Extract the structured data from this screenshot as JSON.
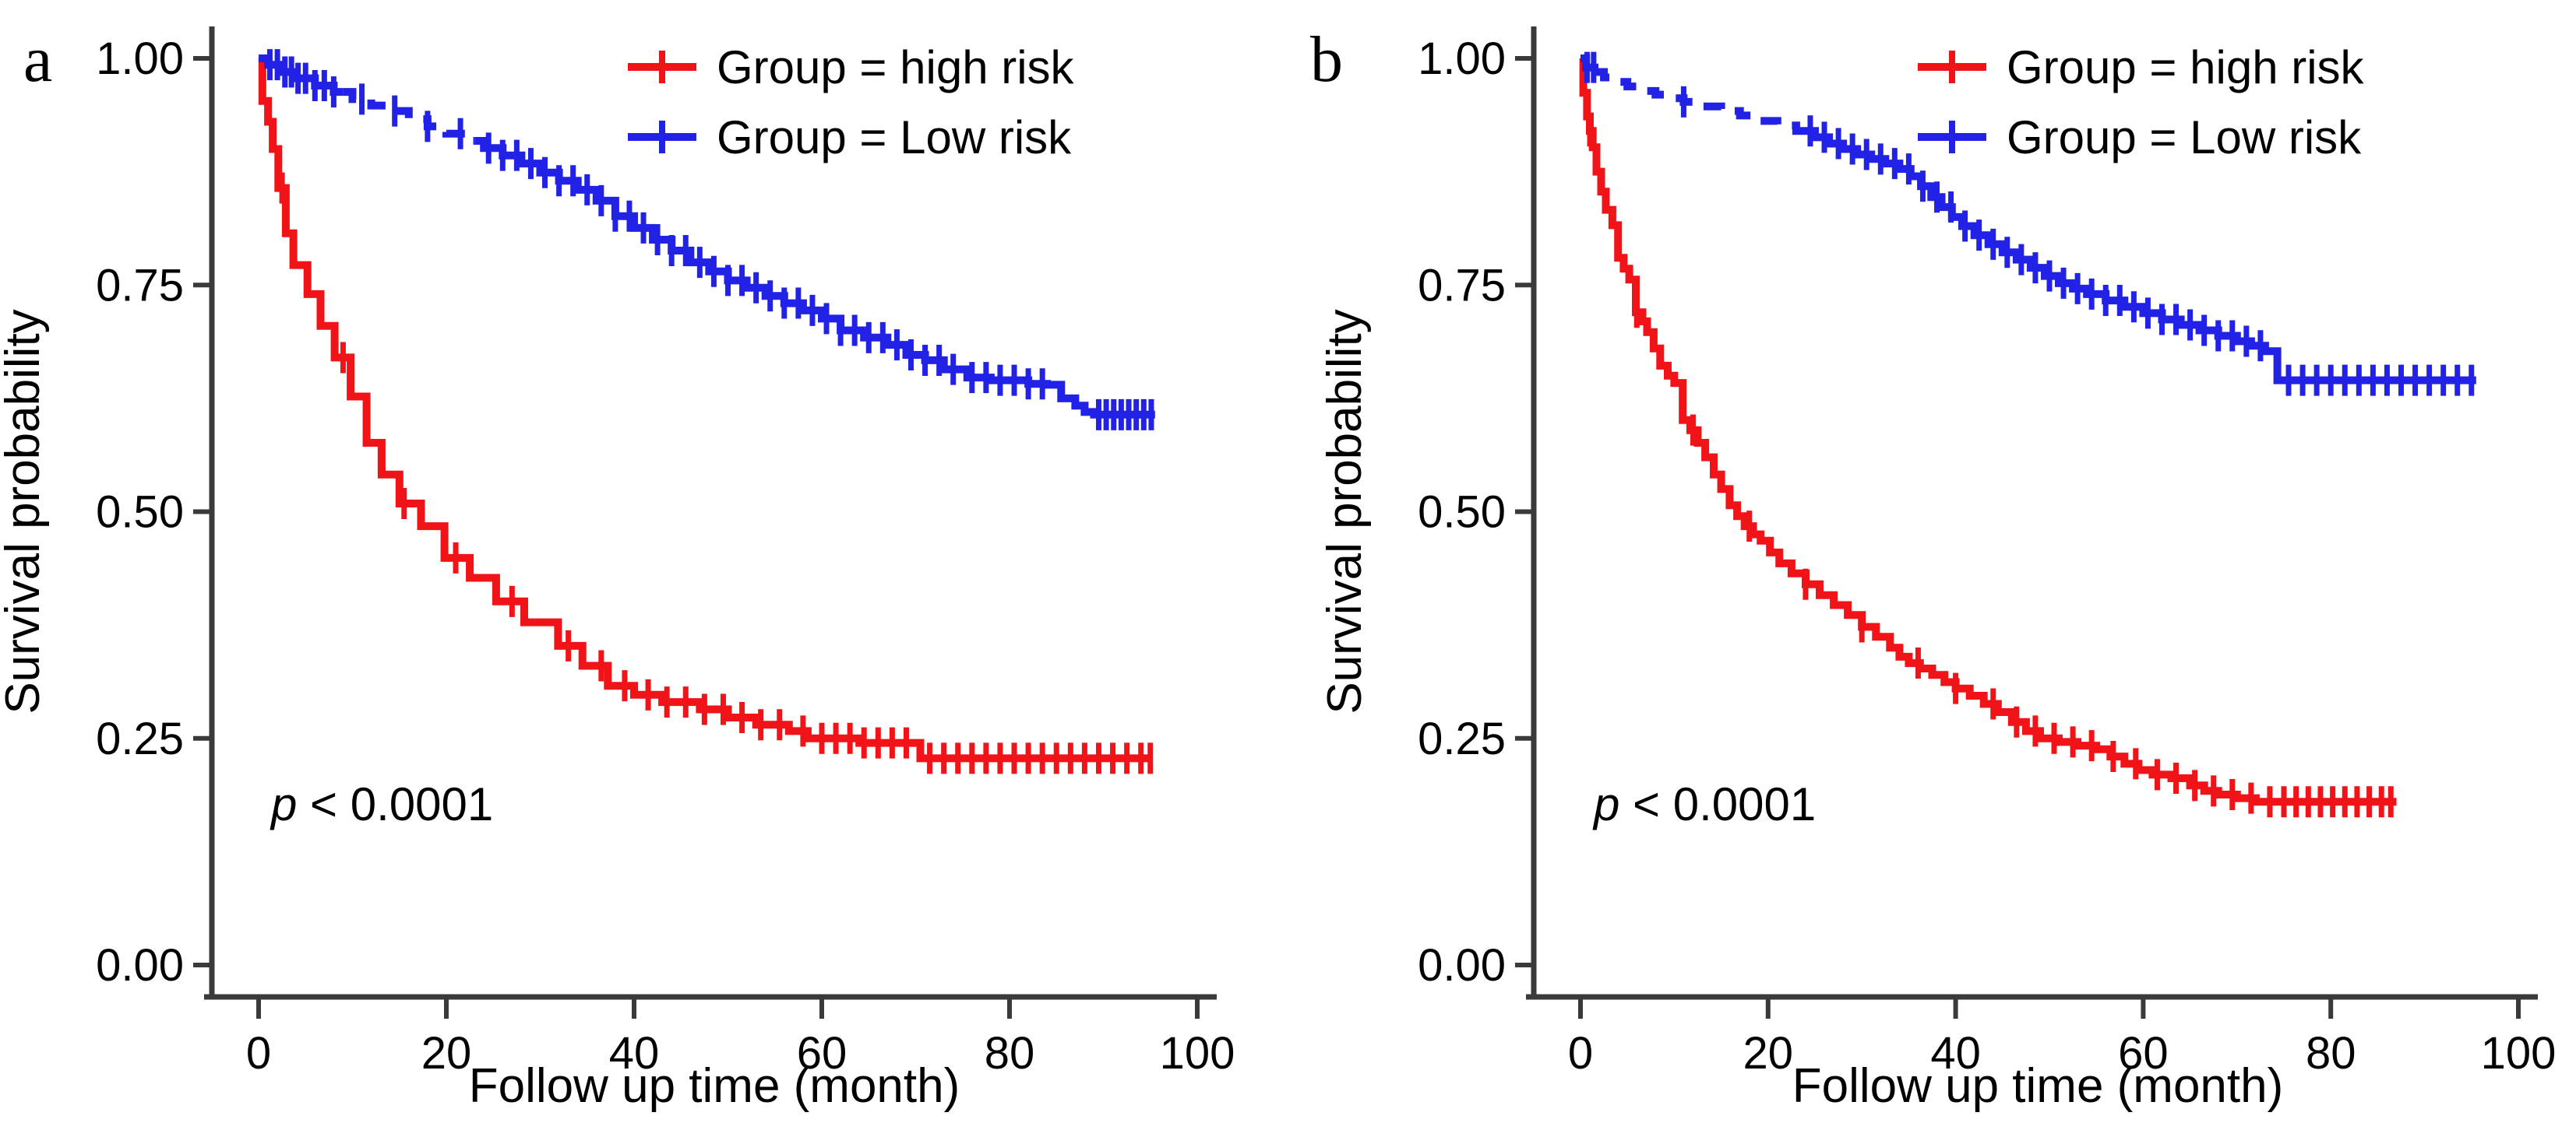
{
  "figure": {
    "kind": "kaplan-meier-survival-curves",
    "background": "#ffffff"
  },
  "colors": {
    "high_risk": "#F01318",
    "low_risk": "#2222E6",
    "axis": "#3A3A3A",
    "text": "#000000"
  },
  "chart_data": [
    {
      "type": "line",
      "subtype": "kaplan-meier-step",
      "panel_label": "a",
      "title": "",
      "xlabel": "Follow up time (month)",
      "ylabel": "Survival probability",
      "xlim": [
        0,
        100
      ],
      "ylim": [
        0.0,
        1.0
      ],
      "xticks": [
        "0",
        "20",
        "40",
        "60",
        "80",
        "100"
      ],
      "xtick_values": [
        0,
        20,
        40,
        60,
        80,
        100
      ],
      "yticks": [
        "0.00",
        "0.25",
        "0.50",
        "0.75",
        "1.00"
      ],
      "ytick_values": [
        0,
        0.25,
        0.5,
        0.75,
        1.0
      ],
      "grid": false,
      "legend_position": "top-right-inside",
      "p_symbol": "p",
      "p_value_text": " < 0.0001",
      "series": [
        {
          "name": "Group = high risk",
          "color": "#F01318",
          "line_style": "solid",
          "end_time": 95.2,
          "points": [
            [
              0,
              1.0
            ],
            [
              0.4,
              0.953
            ],
            [
              1.0,
              0.93
            ],
            [
              1.5,
              0.9
            ],
            [
              2.1,
              0.857
            ],
            [
              2.9,
              0.807
            ],
            [
              3.7,
              0.772
            ],
            [
              5.2,
              0.74
            ],
            [
              6.6,
              0.705
            ],
            [
              8.1,
              0.67
            ],
            [
              9.8,
              0.627
            ],
            [
              11.5,
              0.576
            ],
            [
              13.1,
              0.541
            ],
            [
              15.0,
              0.509
            ],
            [
              17.3,
              0.484
            ],
            [
              19.8,
              0.449
            ],
            [
              22.5,
              0.427
            ],
            [
              25.3,
              0.401
            ],
            [
              28.3,
              0.378
            ],
            [
              31.9,
              0.352
            ],
            [
              34.5,
              0.33
            ],
            [
              37.2,
              0.308
            ],
            [
              40.0,
              0.298
            ],
            [
              43.0,
              0.29
            ],
            [
              47.0,
              0.282
            ],
            [
              50.0,
              0.273
            ],
            [
              53.0,
              0.265
            ],
            [
              56.5,
              0.258
            ],
            [
              58.5,
              0.25
            ],
            [
              64.0,
              0.245
            ],
            [
              70.5,
              0.228
            ]
          ],
          "censor_times": [
            2.5,
            9,
            15.5,
            21,
            27,
            33,
            36.5,
            39,
            41.5,
            43.5,
            45.5,
            47.5,
            49.5,
            51.5,
            53.5,
            55.5,
            58,
            60,
            61.5,
            63,
            64.5,
            66,
            67.5,
            69,
            71.5,
            73,
            74.5,
            76,
            77.5,
            79,
            80.5,
            82,
            83.5,
            85,
            86.5,
            88,
            89.5,
            91,
            92.5,
            94,
            95
          ],
          "dash_ranges": []
        },
        {
          "name": "Group = Low risk",
          "color": "#2222E6",
          "line_style": "solid-with-dashed-stretch",
          "end_time": 95.5,
          "points": [
            [
              0,
              1.0
            ],
            [
              1,
              0.993
            ],
            [
              2.5,
              0.985
            ],
            [
              4,
              0.978
            ],
            [
              6,
              0.97
            ],
            [
              8,
              0.963
            ],
            [
              10,
              0.955
            ],
            [
              12,
              0.948
            ],
            [
              14,
              0.942
            ],
            [
              16,
              0.933
            ],
            [
              18,
              0.925
            ],
            [
              20,
              0.917
            ],
            [
              22,
              0.909
            ],
            [
              24,
              0.901
            ],
            [
              26,
              0.893
            ],
            [
              28,
              0.884
            ],
            [
              30,
              0.874
            ],
            [
              32,
              0.865
            ],
            [
              34,
              0.855
            ],
            [
              36,
              0.843
            ],
            [
              38,
              0.826
            ],
            [
              40,
              0.813
            ],
            [
              42,
              0.8
            ],
            [
              44,
              0.788
            ],
            [
              46,
              0.775
            ],
            [
              48,
              0.765
            ],
            [
              50,
              0.755
            ],
            [
              52,
              0.747
            ],
            [
              54,
              0.738
            ],
            [
              56,
              0.73
            ],
            [
              58,
              0.722
            ],
            [
              60,
              0.713
            ],
            [
              62,
              0.7
            ],
            [
              64.5,
              0.692
            ],
            [
              67,
              0.684
            ],
            [
              69,
              0.673
            ],
            [
              71,
              0.667
            ],
            [
              73,
              0.657
            ],
            [
              75.5,
              0.648
            ],
            [
              78,
              0.645
            ],
            [
              82,
              0.641
            ],
            [
              84,
              0.64
            ],
            [
              85.5,
              0.625
            ],
            [
              87,
              0.617
            ],
            [
              88,
              0.61
            ],
            [
              89,
              0.607
            ]
          ],
          "censor_times": [
            1.2,
            2,
            2.8,
            3.5,
            4.2,
            5,
            6,
            7,
            8,
            11,
            14.5,
            18,
            21.5,
            24.5,
            26,
            27.5,
            29,
            30.5,
            32,
            33.5,
            35,
            36.5,
            38,
            39.5,
            41,
            42.5,
            44,
            45.5,
            47,
            48.5,
            50,
            51.5,
            53,
            54.5,
            56,
            57.5,
            59,
            60.5,
            62,
            63.5,
            65,
            66.5,
            68,
            69.5,
            71,
            72.5,
            74,
            76,
            77.5,
            79,
            80.5,
            82,
            83.5,
            89.5,
            90.3,
            91.1,
            91.9,
            92.7,
            93.5,
            94.3,
            95.1
          ],
          "dash_ranges": [
            [
              9,
              23
            ]
          ]
        }
      ]
    },
    {
      "type": "line",
      "subtype": "kaplan-meier-step",
      "panel_label": "b",
      "title": "",
      "xlabel": "Follow up time (month)",
      "ylabel": "Survival probability",
      "xlim": [
        0,
        100
      ],
      "ylim": [
        0.0,
        1.0
      ],
      "xticks": [
        "0",
        "20",
        "40",
        "60",
        "80",
        "100"
      ],
      "xtick_values": [
        0,
        20,
        40,
        60,
        80,
        100
      ],
      "yticks": [
        "0.00",
        "0.25",
        "0.50",
        "0.75",
        "1.00"
      ],
      "ytick_values": [
        0,
        0.25,
        0.5,
        0.75,
        1.0
      ],
      "grid": false,
      "legend_position": "top-right-inside",
      "p_symbol": "p",
      "p_value_text": " < 0.0001",
      "series": [
        {
          "name": "Group = high risk",
          "color": "#F01318",
          "line_style": "solid",
          "end_time": 87,
          "points": [
            [
              0,
              1.0
            ],
            [
              0.3,
              0.962
            ],
            [
              0.7,
              0.936
            ],
            [
              1.0,
              0.92
            ],
            [
              1.3,
              0.902
            ],
            [
              1.7,
              0.875
            ],
            [
              2.2,
              0.853
            ],
            [
              2.7,
              0.833
            ],
            [
              3.4,
              0.816
            ],
            [
              4.0,
              0.78
            ],
            [
              4.6,
              0.768
            ],
            [
              5.2,
              0.756
            ],
            [
              5.9,
              0.72
            ],
            [
              6.6,
              0.71
            ],
            [
              7.1,
              0.698
            ],
            [
              7.8,
              0.68
            ],
            [
              8.5,
              0.661
            ],
            [
              9.3,
              0.65
            ],
            [
              10.0,
              0.642
            ],
            [
              10.9,
              0.601
            ],
            [
              11.7,
              0.59
            ],
            [
              12.5,
              0.576
            ],
            [
              13.3,
              0.56
            ],
            [
              14.2,
              0.541
            ],
            [
              15.0,
              0.525
            ],
            [
              15.9,
              0.507
            ],
            [
              16.7,
              0.495
            ],
            [
              17.5,
              0.484
            ],
            [
              18.4,
              0.475
            ],
            [
              19.2,
              0.468
            ],
            [
              20.2,
              0.455
            ],
            [
              21.2,
              0.443
            ],
            [
              22.5,
              0.432
            ],
            [
              24,
              0.42
            ],
            [
              25.5,
              0.408
            ],
            [
              27,
              0.397
            ],
            [
              28.5,
              0.386
            ],
            [
              30,
              0.373
            ],
            [
              31.5,
              0.362
            ],
            [
              33,
              0.35
            ],
            [
              34,
              0.34
            ],
            [
              35,
              0.333
            ],
            [
              36.2,
              0.327
            ],
            [
              37.5,
              0.32
            ],
            [
              38.8,
              0.312
            ],
            [
              40,
              0.305
            ],
            [
              41.5,
              0.297
            ],
            [
              43,
              0.288
            ],
            [
              44.5,
              0.279
            ],
            [
              46,
              0.268
            ],
            [
              47.5,
              0.258
            ],
            [
              49,
              0.25
            ],
            [
              51,
              0.246
            ],
            [
              53,
              0.242
            ],
            [
              55,
              0.238
            ],
            [
              56.5,
              0.23
            ],
            [
              58,
              0.222
            ],
            [
              59.5,
              0.215
            ],
            [
              61,
              0.21
            ],
            [
              63,
              0.206
            ],
            [
              65,
              0.198
            ],
            [
              66.5,
              0.192
            ],
            [
              68,
              0.188
            ],
            [
              70,
              0.184
            ],
            [
              72,
              0.18
            ]
          ],
          "censor_times": [
            1,
            6,
            12,
            18,
            24,
            30,
            36,
            40,
            44,
            46.5,
            48.5,
            50.5,
            52.5,
            54.5,
            56.8,
            59.2,
            61.5,
            63.5,
            65.5,
            67.5,
            69.5,
            71.5,
            73.5,
            75,
            76.3,
            77.6,
            78.9,
            80.2,
            81.5,
            82.8,
            84.1,
            85.4,
            86.4
          ],
          "dash_ranges": []
        },
        {
          "name": "Group = Low risk",
          "color": "#2222E6",
          "line_style": "dashed-then-solid",
          "end_time": 95.5,
          "points": [
            [
              0,
              1.0
            ],
            [
              0.6,
              0.99
            ],
            [
              1.5,
              0.985
            ],
            [
              2.5,
              0.979
            ],
            [
              3.5,
              0.974
            ],
            [
              5,
              0.969
            ],
            [
              6.5,
              0.964
            ],
            [
              8,
              0.96
            ],
            [
              9.5,
              0.956
            ],
            [
              11,
              0.952
            ],
            [
              13,
              0.947
            ],
            [
              15,
              0.942
            ],
            [
              17,
              0.937
            ],
            [
              19,
              0.931
            ],
            [
              21,
              0.926
            ],
            [
              23,
              0.92
            ],
            [
              25,
              0.913
            ],
            [
              26.5,
              0.906
            ],
            [
              28,
              0.9
            ],
            [
              29.5,
              0.894
            ],
            [
              31,
              0.889
            ],
            [
              32.5,
              0.884
            ],
            [
              34,
              0.878
            ],
            [
              35.2,
              0.87
            ],
            [
              36.3,
              0.859
            ],
            [
              37.4,
              0.847
            ],
            [
              38.5,
              0.836
            ],
            [
              39.6,
              0.825
            ],
            [
              40.7,
              0.815
            ],
            [
              42,
              0.805
            ],
            [
              43.5,
              0.795
            ],
            [
              45,
              0.786
            ],
            [
              46.5,
              0.778
            ],
            [
              48,
              0.769
            ],
            [
              49.5,
              0.76
            ],
            [
              51,
              0.752
            ],
            [
              52.5,
              0.746
            ],
            [
              54,
              0.74
            ],
            [
              56,
              0.733
            ],
            [
              58,
              0.726
            ],
            [
              60,
              0.719
            ],
            [
              62,
              0.712
            ],
            [
              64,
              0.706
            ],
            [
              66,
              0.7
            ],
            [
              68,
              0.694
            ],
            [
              70,
              0.688
            ],
            [
              71.5,
              0.683
            ],
            [
              73,
              0.677
            ],
            [
              74.3,
              0.645
            ]
          ],
          "censor_times": [
            0.7,
            1.4,
            11,
            24.5,
            26,
            27.5,
            29,
            30.5,
            32,
            33.5,
            35,
            36.5,
            38,
            39.5,
            41,
            42.5,
            44,
            45.5,
            47,
            48.5,
            50,
            51.5,
            53,
            54.5,
            56,
            57.5,
            59,
            60.5,
            62,
            63.5,
            65,
            66.5,
            68,
            69.5,
            71,
            72.5,
            75.5,
            77,
            78.5,
            80,
            81.5,
            83,
            84.5,
            86,
            87.5,
            89,
            90.5,
            92,
            93.5,
            95
          ],
          "dash_ranges": [
            [
              1.5,
              24
            ]
          ]
        }
      ]
    }
  ]
}
